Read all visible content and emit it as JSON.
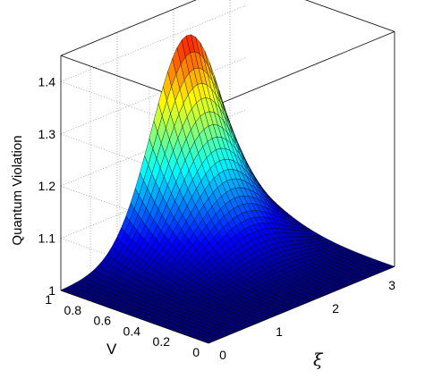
{
  "chart_data": {
    "type": "surface",
    "title": "",
    "zlabel": "Quantum Violation",
    "vlabel": "V",
    "xilabel": "ξ",
    "v_ticks": [
      "1",
      "0.8",
      "0.6",
      "0.4",
      "0.2",
      "0"
    ],
    "xi_ticks": [
      "0",
      "1",
      "2",
      "3"
    ],
    "z_ticks": [
      "1",
      "1.1",
      "1.2",
      "1.3",
      "1.4"
    ],
    "v_range": [
      0,
      1
    ],
    "xi_range": [
      0,
      3.3
    ],
    "z_range": [
      1,
      1.45
    ],
    "peak": {
      "v": 1,
      "xi": 2.5,
      "z": 1.45
    },
    "colormap": "jet",
    "grid": true,
    "series": [
      {
        "xi": 0.0,
        "z_at_v1": 1.0
      },
      {
        "xi": 0.5,
        "z_at_v1": 1.01
      },
      {
        "xi": 1.0,
        "z_at_v1": 1.05
      },
      {
        "xi": 1.5,
        "z_at_v1": 1.14
      },
      {
        "xi": 2.0,
        "z_at_v1": 1.28
      },
      {
        "xi": 2.5,
        "z_at_v1": 1.45
      },
      {
        "xi": 3.0,
        "z_at_v1": 1.3
      },
      {
        "xi": 3.3,
        "z_at_v1": 1.0
      }
    ]
  }
}
